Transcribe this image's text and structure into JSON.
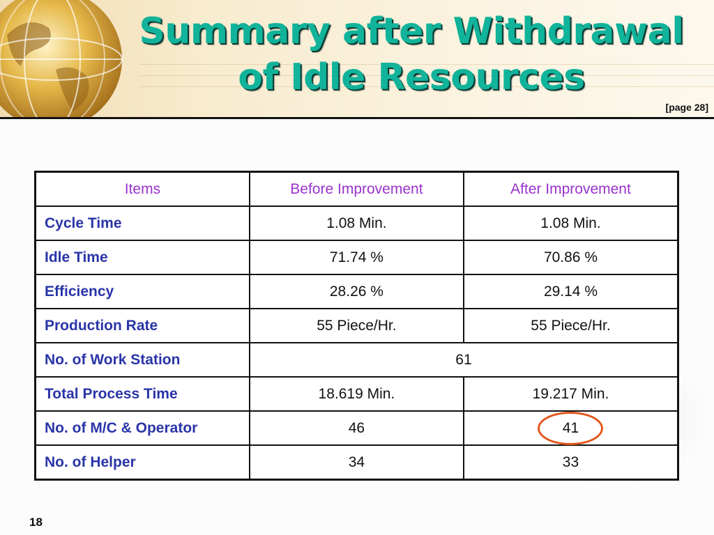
{
  "slide": {
    "title_line1": "Summary after Withdrawal",
    "title_line2": "of Idle Resources",
    "page_ref": "[page 28]",
    "slide_number": "18"
  },
  "table": {
    "headers": [
      "Items",
      "Before Improvement",
      "After Improvement"
    ],
    "rows": [
      {
        "item": "Cycle Time",
        "before": "1.08 Min.",
        "after": "1.08 Min."
      },
      {
        "item": "Idle Time",
        "before": "71.74 %",
        "after": "70.86 %"
      },
      {
        "item": "Efficiency",
        "before": "28.26 %",
        "after": "29.14 %"
      },
      {
        "item": "Production Rate",
        "before": "55 Piece/Hr.",
        "after": "55 Piece/Hr."
      },
      {
        "item": "No. of Work Station",
        "merged": "61"
      },
      {
        "item": "Total Process Time",
        "before": "18.619 Min.",
        "after": "19.217 Min."
      },
      {
        "item": "No. of M/C & Operator",
        "before": "46",
        "after": "41",
        "after_highlighted": true
      },
      {
        "item": "No. of Helper",
        "before": "34",
        "after": "33"
      }
    ]
  },
  "colors": {
    "title": "#11b39a",
    "header_text": "#9933cc",
    "item_text": "#2a35a8",
    "highlight_circle": "#e2561a"
  },
  "icons": {
    "header_decoration": "globe-icon"
  }
}
